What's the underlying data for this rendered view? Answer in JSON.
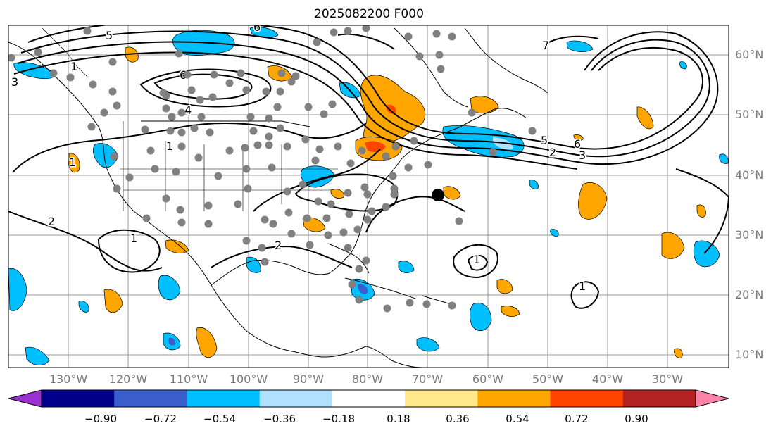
{
  "title": "2025082200 F000",
  "lat_labels": [
    "60°N",
    "50°N",
    "40°N",
    "30°N",
    "20°N",
    "10°N"
  ],
  "lon_labels": [
    "130°W",
    "120°W",
    "110°W",
    "100°W",
    "90°W",
    "80°W",
    "70°W",
    "60°W",
    "50°W",
    "40°W",
    "30°W"
  ],
  "contour_labels": [
    "5",
    "6",
    "1",
    "3",
    "6",
    "4",
    "1",
    "1",
    "2",
    "1",
    "2",
    "1",
    "1",
    "7",
    "5",
    "6",
    "3",
    "2"
  ],
  "colorbar": {
    "ticks": [
      "−0.90",
      "−0.72",
      "−0.54",
      "−0.36",
      "−0.18",
      "0.18",
      "0.36",
      "0.54",
      "0.72",
      "0.90"
    ],
    "colors": [
      "#9b30d0",
      "#00008b",
      "#3a5fcd",
      "#00bfff",
      "#b0e2ff",
      "#ffffff",
      "#ffe88a",
      "#ffa500",
      "#ff4500",
      "#b22222",
      "#ff82ab"
    ]
  },
  "colors": {
    "observation_dot": "#808080",
    "marker": "#000000"
  }
}
